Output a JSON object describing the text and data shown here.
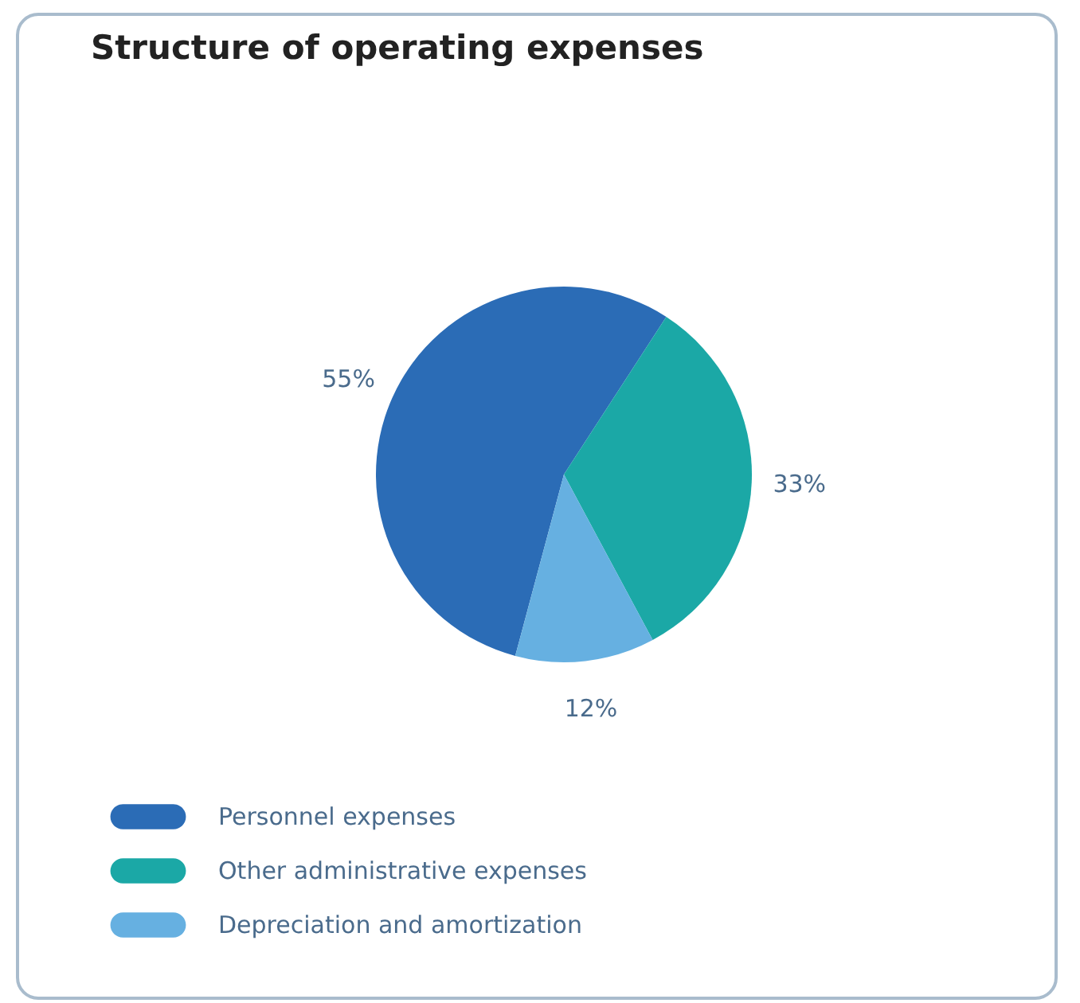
{
  "chart_data": {
    "type": "pie",
    "title": "Structure of operating expenses",
    "categories": [
      "Personnel expenses",
      "Other administrative expenses",
      "Depreciation and amortization"
    ],
    "values": [
      55,
      33,
      12
    ],
    "colors": [
      "#2b6cb6",
      "#1ba8a6",
      "#66b0e1"
    ],
    "value_labels": [
      "55%",
      "33%",
      "12%"
    ],
    "legend": "bottom left"
  }
}
